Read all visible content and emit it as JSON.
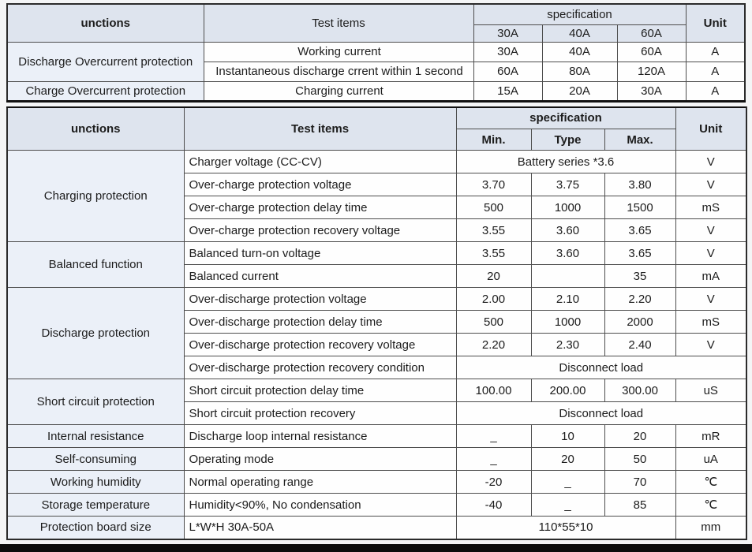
{
  "colors": {
    "header_bg": "#dee4ee",
    "label_bg": "#ebf0f8",
    "cell_bg": "#fefefe",
    "border": "#4d4d4d",
    "bottom_bar": "#0d0d0d"
  },
  "table1": {
    "headers": {
      "functions": "unctions",
      "test_items": "Test items",
      "specification": "specification",
      "unit": "Unit",
      "spec_cols": [
        "30A",
        "40A",
        "60A"
      ]
    },
    "groups": [
      {
        "label": "Discharge Overcurrent protection",
        "rows": [
          {
            "test": "Working current",
            "values": [
              "30A",
              "40A",
              "60A"
            ],
            "unit": "A"
          },
          {
            "test": "Instantaneous discharge crrent within 1 second",
            "values": [
              "60A",
              "80A",
              "120A"
            ],
            "unit": "A"
          }
        ]
      },
      {
        "label": "Charge Overcurrent protection",
        "rows": [
          {
            "test": "Charging current",
            "values": [
              "15A",
              "20A",
              "30A"
            ],
            "unit": "A"
          }
        ]
      }
    ]
  },
  "table2": {
    "headers": {
      "functions": "unctions",
      "test_items": "Test items",
      "specification": "specification",
      "unit": "Unit",
      "spec_cols": [
        "Min.",
        "Type",
        "Max."
      ]
    },
    "groups": [
      {
        "label": "Charging protection",
        "rows": [
          {
            "test": "Charger voltage (CC-CV)",
            "span": "Battery series *3.6",
            "span_includes_unit": false,
            "unit": "V"
          },
          {
            "test": "Over-charge protection voltage",
            "values": [
              "3.70",
              "3.75",
              "3.80"
            ],
            "unit": "V"
          },
          {
            "test": "Over-charge protection delay time",
            "values": [
              "500",
              "1000",
              "1500"
            ],
            "unit": "mS"
          },
          {
            "test": "Over-charge protection recovery voltage",
            "values": [
              "3.55",
              "3.60",
              "3.65"
            ],
            "unit": "V"
          }
        ]
      },
      {
        "label": "Balanced function",
        "rows": [
          {
            "test": "Balanced turn-on voltage",
            "values": [
              "3.55",
              "3.60",
              "3.65"
            ],
            "unit": "V"
          },
          {
            "test": "Balanced current",
            "values": [
              "20",
              "",
              "35"
            ],
            "unit": "mA"
          }
        ]
      },
      {
        "label": "Discharge protection",
        "rows": [
          {
            "test": "Over-discharge protection voltage",
            "values": [
              "2.00",
              "2.10",
              "2.20"
            ],
            "unit": "V"
          },
          {
            "test": "Over-discharge protection delay time",
            "values": [
              "500",
              "1000",
              "2000"
            ],
            "unit": "mS"
          },
          {
            "test": "Over-discharge protection recovery voltage",
            "values": [
              "2.20",
              "2.30",
              "2.40"
            ],
            "unit": "V"
          },
          {
            "test": "Over-discharge protection recovery condition",
            "span": "Disconnect load",
            "span_includes_unit": true
          }
        ]
      },
      {
        "label": "Short circuit protection",
        "rows": [
          {
            "test": "Short circuit protection delay time",
            "values": [
              "100.00",
              "200.00",
              "300.00"
            ],
            "unit": "uS"
          },
          {
            "test": "Short circuit protection recovery",
            "span": "Disconnect load",
            "span_includes_unit": true
          }
        ]
      },
      {
        "label": "Internal resistance",
        "rows": [
          {
            "test": "Discharge loop internal resistance",
            "values": [
              "_",
              "10",
              "20"
            ],
            "unit": "mR"
          }
        ]
      },
      {
        "label": "Self-consuming",
        "rows": [
          {
            "test": "Operating mode",
            "values": [
              "_",
              "20",
              "50"
            ],
            "unit": "uA"
          }
        ]
      },
      {
        "label": "Working humidity",
        "rows": [
          {
            "test": "Normal operating range",
            "values": [
              "-20",
              "_",
              "70"
            ],
            "unit": "℃"
          }
        ]
      },
      {
        "label": "Storage temperature",
        "rows": [
          {
            "test": "Humidity<90%, No condensation",
            "values": [
              "-40",
              "_",
              "85"
            ],
            "unit": "℃"
          }
        ]
      },
      {
        "label": "Protection board size",
        "rows": [
          {
            "test": "L*W*H 30A-50A",
            "span": "110*55*10",
            "span_includes_unit": false,
            "unit": "mm"
          }
        ]
      }
    ]
  }
}
